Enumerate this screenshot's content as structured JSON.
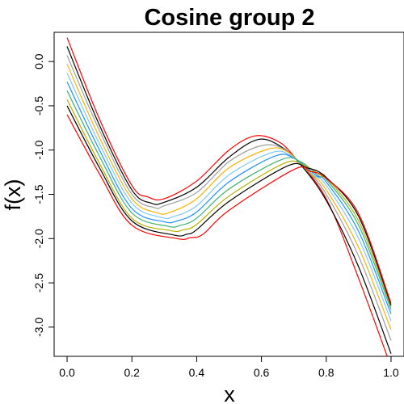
{
  "chart_data": {
    "type": "line",
    "title": "Cosine group 2",
    "xlabel": "x",
    "ylabel": "f(x)",
    "xlim": [
      -0.04,
      1.04
    ],
    "ylim": [
      -3.33,
      0.33
    ],
    "x_ticks": [
      0.0,
      0.2,
      0.4,
      0.6,
      0.8,
      1.0
    ],
    "x_tick_labels": [
      "0.0",
      "0.2",
      "0.4",
      "0.6",
      "0.8",
      "1.0"
    ],
    "y_ticks": [
      0.0,
      -0.5,
      -1.0,
      -1.5,
      -2.0,
      -2.5,
      -3.0
    ],
    "y_tick_labels": [
      "0.0",
      "-0.5",
      "-1.0",
      "-1.5",
      "-2.0",
      "-2.5",
      "-3.0"
    ],
    "grid": false,
    "legend": "none",
    "series": [
      {
        "color": "#ff0000",
        "x": [
          0.0,
          0.1,
          0.2,
          0.25,
          0.3,
          0.4,
          0.5,
          0.58,
          0.65,
          0.7,
          0.8,
          0.9,
          1.0
        ],
        "y": [
          0.27,
          -0.65,
          -1.4,
          -1.53,
          -1.55,
          -1.35,
          -1.0,
          -0.84,
          -0.9,
          -1.07,
          -1.55,
          -2.45,
          -3.45
        ]
      },
      {
        "color": "#000000",
        "x": [
          0.0,
          0.1,
          0.2,
          0.26,
          0.3,
          0.4,
          0.5,
          0.59,
          0.66,
          0.72,
          0.8,
          0.9,
          1.0
        ],
        "y": [
          0.17,
          -0.72,
          -1.45,
          -1.6,
          -1.59,
          -1.42,
          -1.08,
          -0.88,
          -0.96,
          -1.16,
          -1.57,
          -2.32,
          -3.3
        ]
      },
      {
        "color": "#9e9e9e",
        "x": [
          0.0,
          0.1,
          0.2,
          0.27,
          0.3,
          0.4,
          0.5,
          0.6,
          0.67,
          0.74,
          0.8,
          0.9,
          1.0
        ],
        "y": [
          0.07,
          -0.78,
          -1.5,
          -1.65,
          -1.63,
          -1.48,
          -1.13,
          -0.95,
          -0.99,
          -1.23,
          -1.5,
          -2.2,
          -3.15
        ]
      },
      {
        "color": "#ffb000",
        "x": [
          0.0,
          0.1,
          0.2,
          0.28,
          0.32,
          0.4,
          0.5,
          0.62,
          0.68,
          0.75,
          0.8,
          0.9,
          1.0
        ],
        "y": [
          -0.03,
          -0.86,
          -1.55,
          -1.71,
          -1.7,
          -1.55,
          -1.2,
          -0.99,
          -1.02,
          -1.26,
          -1.45,
          -2.1,
          -3.03
        ]
      },
      {
        "color": "#7ec8f8",
        "x": [
          0.0,
          0.1,
          0.2,
          0.29,
          0.33,
          0.4,
          0.5,
          0.63,
          0.69,
          0.76,
          0.8,
          0.9,
          1.0
        ],
        "y": [
          -0.13,
          -0.93,
          -1.6,
          -1.76,
          -1.75,
          -1.63,
          -1.28,
          -1.03,
          -1.06,
          -1.28,
          -1.4,
          -2.0,
          -2.93
        ]
      },
      {
        "color": "#1e90ff",
        "x": [
          0.0,
          0.1,
          0.2,
          0.3,
          0.34,
          0.4,
          0.5,
          0.64,
          0.7,
          0.77,
          0.8,
          0.9,
          1.0
        ],
        "y": [
          -0.23,
          -1.0,
          -1.66,
          -1.81,
          -1.8,
          -1.7,
          -1.36,
          -1.07,
          -1.09,
          -1.29,
          -1.36,
          -1.92,
          -2.85
        ]
      },
      {
        "color": "#3cb371",
        "x": [
          0.0,
          0.1,
          0.2,
          0.31,
          0.35,
          0.4,
          0.5,
          0.66,
          0.72,
          0.78,
          0.8,
          0.9,
          1.0
        ],
        "y": [
          -0.33,
          -1.07,
          -1.71,
          -1.86,
          -1.85,
          -1.77,
          -1.44,
          -1.11,
          -1.13,
          -1.3,
          -1.33,
          -1.85,
          -2.8
        ]
      },
      {
        "color": "#b8b000",
        "x": [
          0.0,
          0.1,
          0.2,
          0.32,
          0.36,
          0.4,
          0.5,
          0.67,
          0.73,
          0.79,
          0.8,
          0.9,
          1.0
        ],
        "y": [
          -0.43,
          -1.15,
          -1.77,
          -1.91,
          -1.9,
          -1.84,
          -1.52,
          -1.15,
          -1.17,
          -1.3,
          -1.31,
          -1.8,
          -2.77
        ]
      },
      {
        "color": "#000000",
        "x": [
          0.0,
          0.1,
          0.2,
          0.33,
          0.37,
          0.4,
          0.5,
          0.68,
          0.74,
          0.8,
          0.9,
          1.0
        ],
        "y": [
          -0.5,
          -1.2,
          -1.8,
          -1.96,
          -1.95,
          -1.9,
          -1.58,
          -1.18,
          -1.2,
          -1.31,
          -1.75,
          -2.75
        ]
      },
      {
        "color": "#ff0000",
        "x": [
          0.0,
          0.1,
          0.2,
          0.34,
          0.38,
          0.42,
          0.5,
          0.7,
          0.75,
          0.8,
          0.9,
          1.0
        ],
        "y": [
          -0.6,
          -1.27,
          -1.85,
          -2.0,
          -1.99,
          -1.95,
          -1.68,
          -1.22,
          -1.24,
          -1.32,
          -1.72,
          -2.73
        ]
      }
    ]
  }
}
